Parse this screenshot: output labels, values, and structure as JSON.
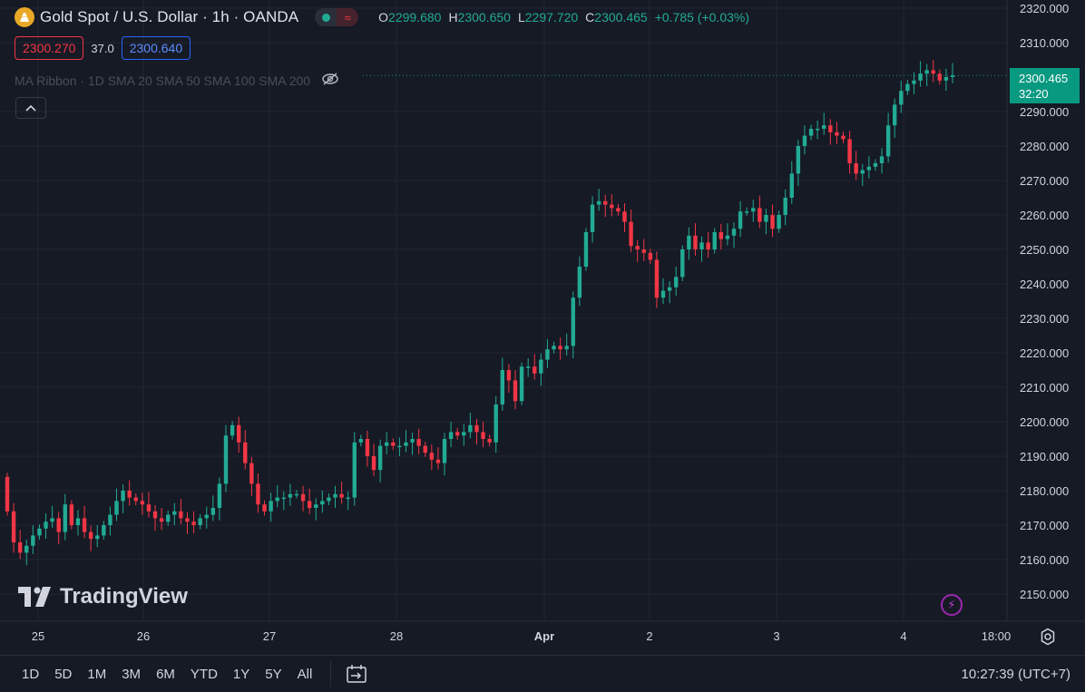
{
  "header": {
    "symbol_title": "Gold Spot / U.S. Dollar · 1h · OANDA",
    "ohlc": [
      {
        "key": "O",
        "value": "2299.680"
      },
      {
        "key": "H",
        "value": "2300.650"
      },
      {
        "key": "L",
        "value": "2297.720"
      },
      {
        "key": "C",
        "value": "2300.465"
      }
    ],
    "change": "+0.785 (+0.03%)",
    "bid": "2300.270",
    "spread": "37.0",
    "ask": "2300.640",
    "indicator": "MA Ribbon · 1D SMA 20 SMA 50 SMA 100 SMA 200",
    "icons": {
      "logo": "gold-coin-icon",
      "visibility": "eye-off-icon",
      "collapse": "chevron-up-icon",
      "data_dot": "live-dot-icon",
      "compare": "wave-icon"
    }
  },
  "last_price": {
    "price": "2300.465",
    "countdown": "32:20"
  },
  "watermark": "TradingView",
  "bottom_bar": {
    "ranges": [
      "1D",
      "5D",
      "1M",
      "3M",
      "6M",
      "YTD",
      "1Y",
      "5Y",
      "All"
    ],
    "clock": "10:27:39 (UTC+7)",
    "icons": {
      "compare": "calendar-range-icon",
      "settings": "gear-icon",
      "alert": "lightning-icon"
    }
  },
  "colors": {
    "up": "#22ab94",
    "down": "#f23645",
    "background": "#161a25",
    "grid": "#232632",
    "last_price": "#089981"
  },
  "chart_data": {
    "type": "candlestick",
    "title": "Gold Spot / U.S. Dollar · 1h · OANDA",
    "ylim": [
      2145,
      2323
    ],
    "y_ticks": [
      "2150.000",
      "2160.000",
      "2170.000",
      "2180.000",
      "2190.000",
      "2200.000",
      "2210.000",
      "2220.000",
      "2230.000",
      "2240.000",
      "2250.000",
      "2260.000",
      "2270.000",
      "2280.000",
      "2290.000",
      "2310.000",
      "2320.000"
    ],
    "x_ticks": [
      "25",
      "26",
      "27",
      "28",
      "Apr",
      "2",
      "3",
      "4",
      "18:00"
    ],
    "grid": true,
    "last_value": 2300.465,
    "series": [
      {
        "name": "Gold Spot / U.S. Dollar",
        "close_path": [
          2174,
          2165,
          2162,
          2164,
          2167,
          2169,
          2171,
          2172,
          2168,
          2176,
          2170,
          2172,
          2168,
          2166,
          2167,
          2170,
          2173,
          2177,
          2180,
          2178,
          2177,
          2176,
          2174,
          2172,
          2171,
          2173,
          2174,
          2172,
          2171,
          2170,
          2172,
          2173,
          2175,
          2182,
          2196,
          2199,
          2194,
          2188,
          2182,
          2176,
          2174,
          2177,
          2178,
          2178,
          2179,
          2179,
          2177,
          2175,
          2176,
          2177,
          2178,
          2179,
          2178,
          2178,
          2194,
          2195,
          2190,
          2186,
          2193,
          2194,
          2193,
          2193,
          2194,
          2195,
          2193,
          2191,
          2189,
          2188,
          2195,
          2197,
          2196,
          2197,
          2199,
          2197,
          2195,
          2194,
          2205,
          2215,
          2212,
          2206,
          2216,
          2216,
          2214,
          2218,
          2221,
          2222,
          2221,
          2222,
          2236,
          2245,
          2255,
          2263,
          2264,
          2263,
          2262,
          2261,
          2258,
          2251,
          2250,
          2249,
          2247,
          2236,
          2238,
          2239,
          2242,
          2250,
          2254,
          2250,
          2252,
          2250,
          2255,
          2253,
          2254,
          2256,
          2261,
          2261,
          2262,
          2258,
          2260,
          2256,
          2260,
          2265,
          2272,
          2280,
          2283,
          2285,
          2285,
          2286,
          2284,
          2283,
          2282,
          2275,
          2272,
          2273,
          2274,
          2275,
          2277,
          2286,
          2292,
          2296,
          2298,
          2299,
          2301,
          2302,
          2301,
          2299,
          2300,
          2300.465
        ]
      }
    ]
  }
}
